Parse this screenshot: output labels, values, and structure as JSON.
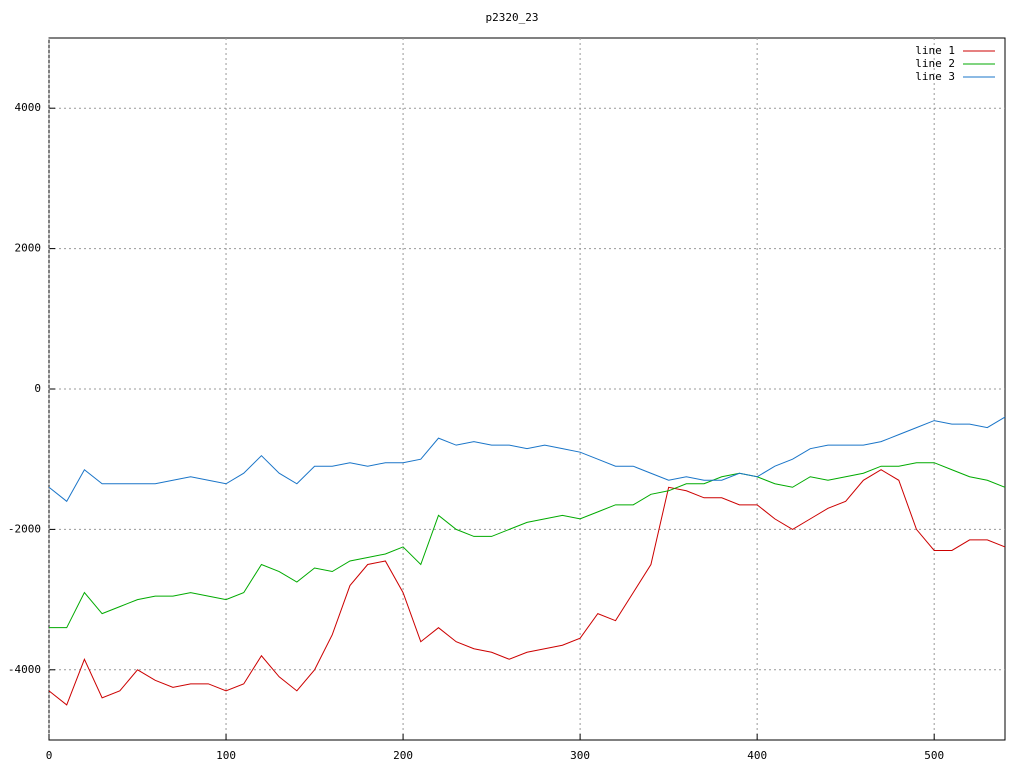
{
  "chart_data": {
    "type": "line",
    "title": "p2320_23",
    "x": [
      0,
      10,
      20,
      30,
      40,
      50,
      60,
      70,
      80,
      90,
      100,
      110,
      120,
      130,
      140,
      150,
      160,
      170,
      180,
      190,
      200,
      210,
      220,
      230,
      240,
      250,
      260,
      270,
      280,
      290,
      300,
      310,
      320,
      330,
      340,
      350,
      360,
      370,
      380,
      390,
      400,
      410,
      420,
      430,
      440,
      450,
      460,
      470,
      480,
      490,
      500,
      510,
      520,
      530,
      540
    ],
    "series": [
      {
        "name": "line 1",
        "color": "#cc0000",
        "values": [
          -4300,
          -4500,
          -3850,
          -4400,
          -4300,
          -4000,
          -4150,
          -4250,
          -4200,
          -4200,
          -4300,
          -4200,
          -3800,
          -4100,
          -4300,
          -4000,
          -3500,
          -2800,
          -2500,
          -2450,
          -2900,
          -3600,
          -3400,
          -3600,
          -3700,
          -3750,
          -3850,
          -3750,
          -3700,
          -3650,
          -3550,
          -3200,
          -3300,
          -2900,
          -2500,
          -1400,
          -1450,
          -1550,
          -1550,
          -1650,
          -1650,
          -1850,
          -2000,
          -1850,
          -1700,
          -1600,
          -1300,
          -1150,
          -1300,
          -2000,
          -2300,
          -2300,
          -2150,
          -2150,
          -2250
        ]
      },
      {
        "name": "line 2",
        "color": "#00aa00",
        "values": [
          -3400,
          -3400,
          -2900,
          -3200,
          -3100,
          -3000,
          -2950,
          -2950,
          -2900,
          -2950,
          -3000,
          -2900,
          -2500,
          -2600,
          -2750,
          -2550,
          -2600,
          -2450,
          -2400,
          -2350,
          -2250,
          -2500,
          -1800,
          -2000,
          -2100,
          -2100,
          -2000,
          -1900,
          -1850,
          -1800,
          -1850,
          -1750,
          -1650,
          -1650,
          -1500,
          -1450,
          -1350,
          -1350,
          -1250,
          -1200,
          -1250,
          -1350,
          -1400,
          -1250,
          -1300,
          -1250,
          -1200,
          -1100,
          -1100,
          -1050,
          -1050,
          -1150,
          -1250,
          -1300,
          -1400
        ]
      },
      {
        "name": "line 3",
        "color": "#1a75c8",
        "values": [
          -1400,
          -1600,
          -1150,
          -1350,
          -1350,
          -1350,
          -1350,
          -1300,
          -1250,
          -1300,
          -1350,
          -1200,
          -950,
          -1200,
          -1350,
          -1100,
          -1100,
          -1050,
          -1100,
          -1050,
          -1050,
          -1000,
          -700,
          -800,
          -750,
          -800,
          -800,
          -850,
          -800,
          -850,
          -900,
          -1000,
          -1100,
          -1100,
          -1200,
          -1300,
          -1250,
          -1300,
          -1300,
          -1200,
          -1250,
          -1100,
          -1000,
          -850,
          -800,
          -800,
          -800,
          -750,
          -650,
          -550,
          -450,
          -500,
          -500,
          -550,
          -400
        ]
      }
    ],
    "xlim": [
      0,
      540
    ],
    "xticks": [
      0,
      100,
      200,
      300,
      400,
      500
    ],
    "ylim": [
      -5000,
      5000
    ],
    "yticks": [
      -4000,
      -2000,
      0,
      2000,
      4000
    ],
    "grid": true,
    "legend": "top-right"
  }
}
